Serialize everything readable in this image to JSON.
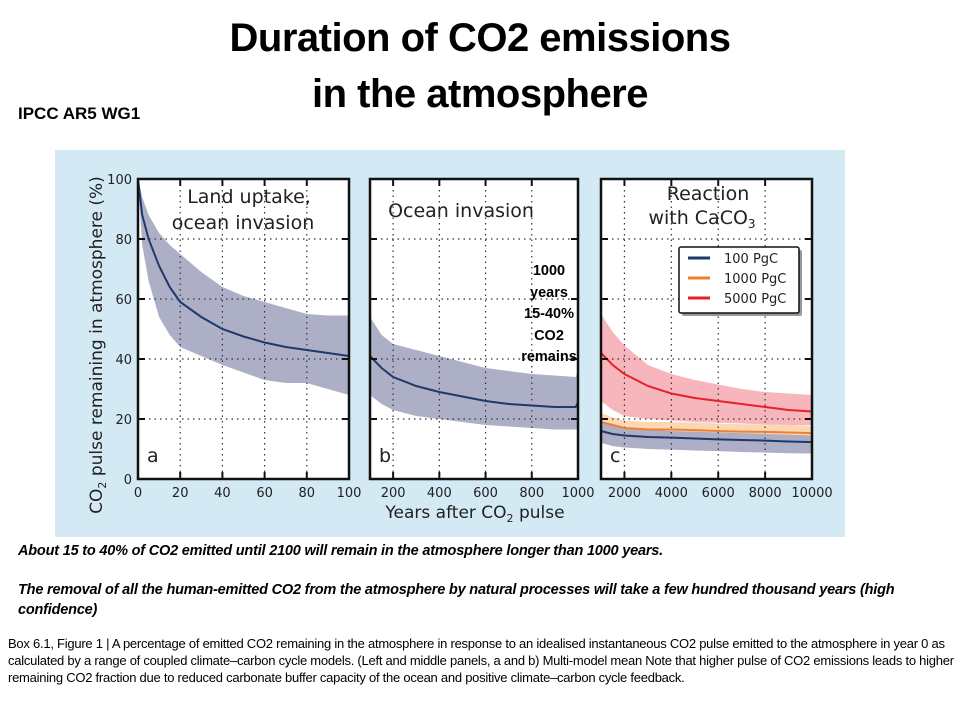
{
  "slide": {
    "title_line1": "Duration of CO2 emissions",
    "title_line2": "in the atmosphere",
    "source": "IPCC AR5 WG1",
    "annotation": [
      "1000",
      "years",
      "15-40%",
      "CO2",
      "remains"
    ],
    "note1": "About 15 to 40% of CO2 emitted until 2100 will remain in the atmosphere longer than 1000 years.",
    "note2": "The removal of all the human-emitted CO2 from the atmosphere by natural processes will take a few hundred thousand years (high confidence)",
    "caption": "Box 6.1, Figure 1 | A percentage of emitted CO2 remaining in the atmosphere in response to an idealised instantaneous CO2 pulse emitted to the atmosphere in year 0 as calculated by a range of coupled climate–carbon cycle models. (Left and middle panels, a and b) Multi-model mean Note that higher pulse of CO2 emissions leads to higher remaining CO2 fraction  due to reduced carbonate buffer capacity of the ocean and positive climate–carbon cycle feedback."
  },
  "colors": {
    "figure_bg": "#d3e9f4",
    "series_100": "#1f3a68",
    "series_1000": "#f08030",
    "series_5000": "#e8202a",
    "band_100": "#a9abc4",
    "band_1000": "#fbd0a6",
    "band_5000": "#f4a9b0"
  },
  "chart_data": [
    {
      "type": "area",
      "panel_label": "a",
      "title": "Land uptake, ocean invasion",
      "xlabel": "",
      "ylabel": "CO2 pulse remaining in atmosphere (%)",
      "xlim": [
        0,
        100
      ],
      "ylim": [
        0,
        100
      ],
      "xticks": [
        "0",
        "20",
        "40",
        "60",
        "80",
        "100"
      ],
      "yticks": [
        "0",
        "20",
        "40",
        "60",
        "80",
        "100"
      ],
      "grid": true,
      "series": [
        {
          "name": "100 PgC",
          "x": [
            0,
            2,
            5,
            10,
            15,
            20,
            30,
            40,
            50,
            60,
            70,
            80,
            90,
            100
          ],
          "mean": [
            100,
            88,
            80,
            71,
            64,
            59,
            54,
            50,
            47.5,
            45.5,
            44,
            43,
            42,
            41
          ],
          "lower": [
            100,
            78,
            66,
            54,
            48,
            44,
            41,
            38,
            35.5,
            33,
            32,
            32,
            30,
            28
          ],
          "upper": [
            100,
            94,
            88,
            82,
            78,
            75,
            69,
            64,
            61,
            59,
            57,
            55,
            54.5,
            54.5
          ]
        }
      ]
    },
    {
      "type": "area",
      "panel_label": "b",
      "title": "Ocean invasion",
      "xlabel": "Years after CO2 pulse",
      "ylabel": "",
      "xlim": [
        100,
        1000
      ],
      "ylim": [
        0,
        100
      ],
      "xticks": [
        "200",
        "400",
        "600",
        "800",
        "1000"
      ],
      "grid": true,
      "series": [
        {
          "name": "100 PgC",
          "x": [
            100,
            150,
            200,
            300,
            400,
            500,
            600,
            700,
            800,
            900,
            990,
            1000
          ],
          "mean": [
            41,
            37,
            34,
            31,
            29,
            27.5,
            26,
            25,
            24.5,
            24,
            24,
            25.5
          ],
          "lower": [
            28,
            25,
            23,
            21,
            20,
            19,
            18,
            17.5,
            17,
            16.5,
            16.5,
            17
          ],
          "upper": [
            54,
            48,
            45,
            43,
            41,
            39,
            37,
            36,
            35,
            34.5,
            34,
            36
          ]
        }
      ]
    },
    {
      "type": "area",
      "panel_label": "c",
      "title": "Reaction with CaCO3",
      "xlabel": "",
      "ylabel": "",
      "xlim": [
        1000,
        10000
      ],
      "ylim": [
        0,
        100
      ],
      "xticks": [
        "2000",
        "4000",
        "6000",
        "8000",
        "10000"
      ],
      "grid": true,
      "legend": {
        "placement": "top-right",
        "entries": [
          "100 PgC",
          "1000 PgC",
          "5000 PgC"
        ]
      },
      "series": [
        {
          "name": "100 PgC",
          "x": [
            1000,
            1500,
            2000,
            3000,
            4000,
            5000,
            6000,
            7000,
            8000,
            9000,
            10000
          ],
          "mean": [
            16,
            15,
            14.5,
            14,
            13.8,
            13.5,
            13.2,
            13,
            12.8,
            12.5,
            12.3
          ],
          "lower": [
            12,
            11,
            10.5,
            10,
            9.8,
            9.5,
            9.3,
            9,
            8.8,
            8.6,
            8.5
          ],
          "upper": [
            19,
            18,
            17,
            16.5,
            16,
            15.8,
            15.5,
            15.3,
            15,
            14.8,
            14.5
          ]
        },
        {
          "name": "1000 PgC",
          "x": [
            1000,
            1500,
            2000,
            3000,
            4000,
            5000,
            6000,
            7000,
            8000,
            9000,
            10000
          ],
          "mean": [
            19,
            18,
            17,
            16.5,
            16.5,
            16.3,
            16,
            15.8,
            15.7,
            15.5,
            15.3
          ],
          "lower": [
            15,
            14,
            13.5,
            13,
            12.8,
            12.5,
            12.3,
            12,
            12,
            11.8,
            11.5
          ],
          "upper": [
            22,
            20.5,
            19.5,
            19,
            19,
            18.8,
            18.5,
            18.3,
            18.2,
            18,
            17.8
          ]
        },
        {
          "name": "5000 PgC",
          "x": [
            1000,
            1500,
            2000,
            3000,
            4000,
            5000,
            6000,
            7000,
            8000,
            9000,
            10000
          ],
          "mean": [
            42,
            38,
            35,
            31,
            28.5,
            27,
            26,
            25,
            24,
            23,
            22.5
          ],
          "lower": [
            26,
            23,
            21,
            20,
            19.5,
            19,
            18.8,
            18.5,
            18.2,
            18,
            18
          ],
          "upper": [
            55,
            49,
            44.5,
            38,
            35,
            33,
            31.5,
            30,
            29,
            28.5,
            28
          ]
        }
      ]
    }
  ]
}
